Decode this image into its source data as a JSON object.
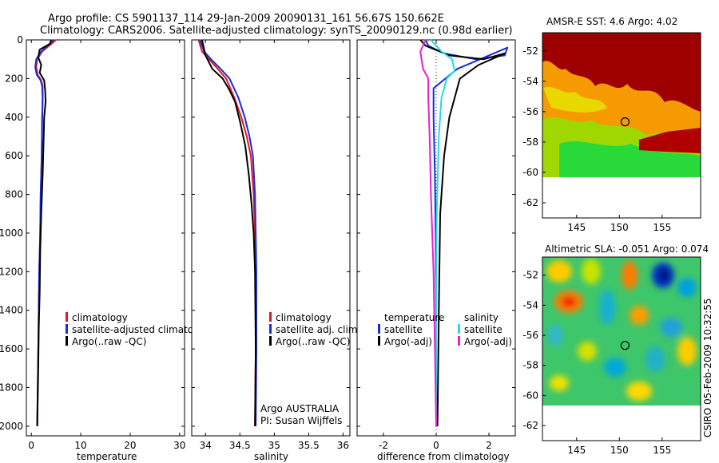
{
  "header": {
    "line1": "Argo profile: CS 5901137_114 29-Jan-2009 20090131_161 56.67S 150.662E",
    "line2": "Climatology: CARS2006. Satellite-adjusted climatology: synTS_20090129.nc (0.98d earlier)"
  },
  "credit": "CSIRO 05-Feb-2009 10:32:55",
  "colors": {
    "climatology": "#e8141e",
    "satellite": "#1a2bd9",
    "argo": "#000000",
    "cyan": "#22dde0",
    "magenta": "#e81fd2"
  },
  "chart_data": [
    {
      "id": "temperature",
      "type": "line",
      "xlabel": "temperature",
      "xlim": [
        -1,
        31
      ],
      "xticks": [
        0,
        10,
        20,
        30
      ],
      "ylim": [
        2050,
        0
      ],
      "yticks": [
        0,
        200,
        400,
        600,
        800,
        1000,
        1200,
        1400,
        1600,
        1800,
        2000
      ],
      "series": [
        {
          "name": "climatology",
          "color": "#e8141e",
          "x": [
            5.0,
            3.6,
            2.2,
            1.2,
            1.0,
            1.3,
            2.0,
            2.3,
            2.3,
            2.2,
            2.1,
            1.9,
            1.8,
            1.6,
            1.5,
            1.4,
            1.3,
            1.2
          ],
          "y": [
            0,
            30,
            60,
            100,
            140,
            180,
            210,
            240,
            300,
            400,
            600,
            800,
            1000,
            1200,
            1400,
            1600,
            1800,
            2000
          ]
        },
        {
          "name": "satellite-adjusted climatology",
          "color": "#1a2bd9",
          "x": [
            4.6,
            3.3,
            2.0,
            1.0,
            0.8,
            1.1,
            1.9,
            2.2,
            2.3,
            2.2,
            2.1,
            1.9,
            1.8,
            1.6,
            1.5,
            1.4,
            1.3,
            1.2
          ],
          "y": [
            0,
            30,
            60,
            100,
            140,
            180,
            210,
            240,
            300,
            400,
            600,
            800,
            1000,
            1200,
            1400,
            1600,
            1800,
            2000
          ]
        },
        {
          "name": "Argo(..raw -QC)",
          "color": "#000000",
          "x": [
            4.0,
            3.8,
            1.7,
            1.4,
            2.0,
            1.7,
            2.6,
            2.8,
            2.9,
            2.6,
            2.5,
            2.3,
            2.0,
            1.8,
            1.7,
            1.5,
            1.4,
            1.2
          ],
          "y": [
            0,
            20,
            50,
            90,
            130,
            170,
            210,
            260,
            320,
            400,
            500,
            700,
            900,
            1100,
            1300,
            1500,
            1700,
            2000
          ]
        }
      ]
    },
    {
      "id": "salinity",
      "type": "line",
      "xlabel": "salinity",
      "xlim": [
        33.8,
        36.1
      ],
      "xticks": [
        34,
        34.5,
        35,
        35.5,
        36
      ],
      "xticklabels": [
        "34",
        "34.5",
        "35",
        "35.5",
        "36"
      ],
      "ylim": [
        2050,
        0
      ],
      "yticks": [
        0,
        200,
        400,
        600,
        800,
        1000,
        1200,
        1400,
        1600,
        1800,
        2000
      ],
      "series": [
        {
          "name": "climatology",
          "color": "#e8141e",
          "x": [
            33.9,
            33.95,
            34.05,
            34.18,
            34.3,
            34.42,
            34.52,
            34.6,
            34.66,
            34.7,
            34.72,
            34.73,
            34.73,
            34.72
          ],
          "y": [
            0,
            60,
            100,
            150,
            200,
            300,
            400,
            500,
            600,
            800,
            1000,
            1200,
            1600,
            2000
          ]
        },
        {
          "name": "satellite adj. clim.",
          "color": "#1a2bd9",
          "x": [
            33.92,
            33.98,
            34.08,
            34.22,
            34.35,
            34.48,
            34.57,
            34.64,
            34.69,
            34.72,
            34.73,
            34.74,
            34.74,
            34.73
          ],
          "y": [
            0,
            60,
            100,
            150,
            200,
            300,
            400,
            500,
            600,
            800,
            1000,
            1200,
            1600,
            2000
          ]
        },
        {
          "name": "Argo(..raw -QC)",
          "color": "#000000",
          "x": [
            33.95,
            34.0,
            34.1,
            34.25,
            34.35,
            34.43,
            34.5,
            34.58,
            34.63,
            34.67,
            34.7,
            34.72,
            34.73,
            34.72
          ],
          "y": [
            0,
            80,
            150,
            200,
            260,
            320,
            420,
            550,
            700,
            850,
            1000,
            1200,
            1600,
            2000
          ]
        }
      ],
      "annotations": [
        "Argo AUSTRALIA",
        "PI: Susan Wijffels"
      ]
    },
    {
      "id": "difference",
      "type": "line",
      "xlabel": "difference from climatology",
      "xlim": [
        -3.0,
        3.0
      ],
      "xticks": [
        -2,
        0,
        2
      ],
      "ylim": [
        2050,
        0
      ],
      "yticks": [
        0,
        200,
        400,
        600,
        800,
        1000,
        1200,
        1400,
        1600,
        1800,
        2000
      ],
      "series": [
        {
          "name": "satellite",
          "group": "temperature",
          "color": "#1a2bd9",
          "x": [
            -0.4,
            -0.3,
            0.3,
            1.5,
            2.6,
            2.7,
            0.8,
            -0.1,
            -0.1,
            -0.05,
            -0.02,
            0.0,
            0.0
          ],
          "y": [
            0,
            30,
            70,
            100,
            80,
            40,
            150,
            250,
            400,
            700,
            1000,
            1500,
            2000
          ]
        },
        {
          "name": "Argo(-adj)",
          "group": "temperature",
          "color": "#000000",
          "x": [
            -0.6,
            -0.4,
            0.5,
            1.8,
            2.6,
            1.6,
            0.9,
            0.7,
            0.5,
            0.3,
            0.15,
            0.1,
            0.05
          ],
          "y": [
            0,
            30,
            80,
            100,
            70,
            130,
            200,
            300,
            400,
            600,
            900,
            1400,
            2000
          ]
        },
        {
          "name": "satellite",
          "group": "salinity",
          "color": "#22dde0",
          "x": [
            -0.2,
            0.2,
            0.6,
            0.7,
            0.4,
            0.2,
            0.1,
            0.02,
            0.0,
            0.0
          ],
          "y": [
            0,
            60,
            100,
            160,
            200,
            300,
            500,
            900,
            1400,
            2000
          ]
        },
        {
          "name": "Argo(-adj)",
          "group": "salinity",
          "color": "#e81fd2",
          "x": [
            -0.4,
            -0.6,
            -0.5,
            -0.3,
            -0.3,
            -0.25,
            -0.2,
            -0.1,
            -0.05,
            0.0
          ],
          "y": [
            0,
            60,
            150,
            200,
            300,
            500,
            800,
            1200,
            1600,
            2000
          ]
        }
      ],
      "legend_headers": [
        "temperature",
        "salinity"
      ]
    },
    {
      "id": "sst_map",
      "type": "heatmap",
      "title": "AMSR-E SST: 4.6 Argo: 4.02",
      "xlim": [
        141,
        159.5
      ],
      "ylim": [
        -63,
        -50.8
      ],
      "xticks": [
        145,
        150,
        155
      ],
      "yticks": [
        -52,
        -54,
        -56,
        -58,
        -60,
        -62
      ],
      "data_extent": {
        "x": [
          141,
          159.5
        ],
        "y": [
          -60,
          -50.8
        ]
      },
      "marker": {
        "lon": 150.662,
        "lat": -56.67
      }
    },
    {
      "id": "sla_map",
      "type": "heatmap",
      "title": "Altimetric SLA: -0.051 Argo: 0.074",
      "xlim": [
        141,
        159.5
      ],
      "ylim": [
        -63,
        -50.8
      ],
      "xticks": [
        145,
        150,
        155
      ],
      "yticks": [
        -52,
        -54,
        -56,
        -58,
        -60,
        -62
      ],
      "data_extent": {
        "x": [
          141,
          159.5
        ],
        "y": [
          -60,
          -50.8
        ]
      },
      "marker": {
        "lon": 150.662,
        "lat": -56.67
      }
    }
  ]
}
